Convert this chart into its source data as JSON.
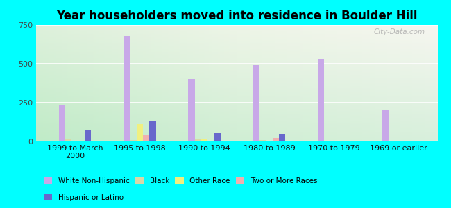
{
  "title": "Year householders moved into residence in Boulder Hill",
  "categories": [
    "1999 to March\n2000",
    "1995 to 1998",
    "1990 to 1994",
    "1980 to 1989",
    "1970 to 1979",
    "1969 or earlier"
  ],
  "series": {
    "White Non-Hispanic": [
      235,
      680,
      400,
      490,
      530,
      205
    ],
    "Black": [
      20,
      8,
      20,
      8,
      5,
      5
    ],
    "Other Race": [
      5,
      110,
      12,
      5,
      5,
      5
    ],
    "Two or More Races": [
      5,
      38,
      5,
      22,
      5,
      5
    ],
    "Hispanic or Latino": [
      70,
      130,
      55,
      50,
      5,
      5
    ]
  },
  "colors": {
    "White Non-Hispanic": "#c8a8e8",
    "Black": "#d8d8a8",
    "Other Race": "#f0f080",
    "Two or More Races": "#f0b0b0",
    "Hispanic or Latino": "#6868cc"
  },
  "ylim": [
    0,
    750
  ],
  "yticks": [
    0,
    250,
    500,
    750
  ],
  "bar_width": 0.1,
  "background_color": "#00ffff",
  "watermark": "City-Data.com",
  "legend_row1": [
    "White Non-Hispanic",
    "Black",
    "Other Race",
    "Two or More Races"
  ],
  "legend_row2": [
    "Hispanic or Latino"
  ]
}
